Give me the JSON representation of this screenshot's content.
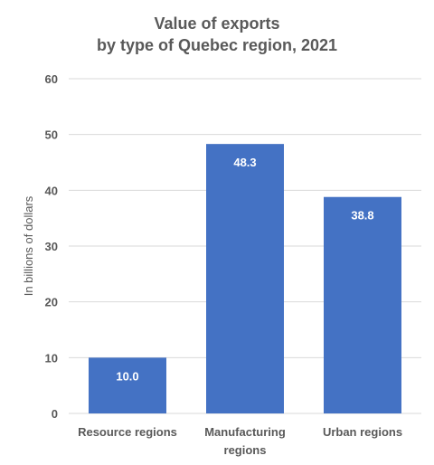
{
  "chart_data": {
    "type": "bar",
    "title_lines": [
      "Value of exports",
      "by type of Quebec region, 2021"
    ],
    "xlabel": "",
    "ylabel": "In billions of dollars",
    "categories": [
      [
        "Resource regions"
      ],
      [
        "Manufacturing",
        "regions"
      ],
      [
        "Urban regions"
      ]
    ],
    "values": [
      10.0,
      48.3,
      38.8
    ],
    "value_labels": [
      "10.0",
      "48.3",
      "38.8"
    ],
    "ylim": [
      0,
      60
    ],
    "yticks": [
      0,
      10,
      20,
      30,
      40,
      50,
      60
    ],
    "grid": true,
    "legend": "none",
    "colors": {
      "bar": "#4472C4",
      "grid": "#D9D9D9",
      "text": "#595959",
      "value_label": "#FFFFFF"
    }
  }
}
